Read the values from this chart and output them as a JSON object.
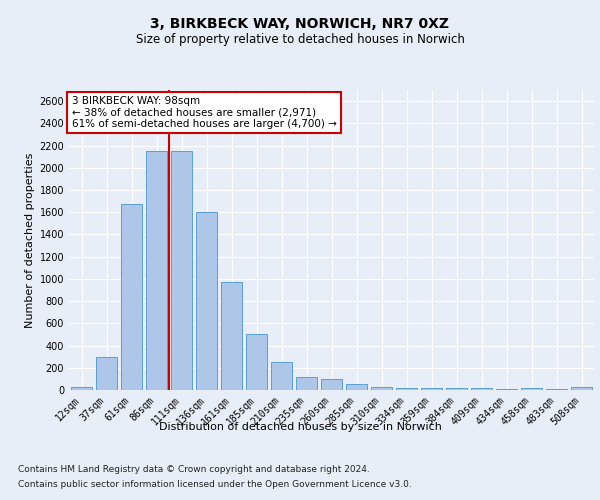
{
  "title1": "3, BIRKBECK WAY, NORWICH, NR7 0XZ",
  "title2": "Size of property relative to detached houses in Norwich",
  "xlabel": "Distribution of detached houses by size in Norwich",
  "ylabel": "Number of detached properties",
  "categories": [
    "12sqm",
    "37sqm",
    "61sqm",
    "86sqm",
    "111sqm",
    "136sqm",
    "161sqm",
    "185sqm",
    "210sqm",
    "235sqm",
    "260sqm",
    "285sqm",
    "310sqm",
    "334sqm",
    "359sqm",
    "384sqm",
    "409sqm",
    "434sqm",
    "458sqm",
    "483sqm",
    "508sqm"
  ],
  "values": [
    25,
    300,
    1670,
    2150,
    2150,
    1600,
    970,
    500,
    250,
    120,
    100,
    50,
    30,
    15,
    15,
    20,
    15,
    10,
    20,
    10,
    25
  ],
  "bar_color": "#aec6e8",
  "bar_edge_color": "#5a9fd4",
  "vline_color": "#cc0000",
  "annotation_text": "3 BIRKBECK WAY: 98sqm\n← 38% of detached houses are smaller (2,971)\n61% of semi-detached houses are larger (4,700) →",
  "annotation_box_color": "#ffffff",
  "annotation_box_edge_color": "#cc0000",
  "ylim": [
    0,
    2700
  ],
  "yticks": [
    0,
    200,
    400,
    600,
    800,
    1000,
    1200,
    1400,
    1600,
    1800,
    2000,
    2200,
    2400,
    2600
  ],
  "footer1": "Contains HM Land Registry data © Crown copyright and database right 2024.",
  "footer2": "Contains public sector information licensed under the Open Government Licence v3.0.",
  "background_color": "#e8eef8",
  "plot_bg_color": "#e8eef8",
  "grid_color": "#ffffff",
  "title1_fontsize": 10,
  "title2_fontsize": 8.5,
  "axis_label_fontsize": 8,
  "tick_fontsize": 7,
  "footer_fontsize": 6.5,
  "annotation_fontsize": 7.5
}
